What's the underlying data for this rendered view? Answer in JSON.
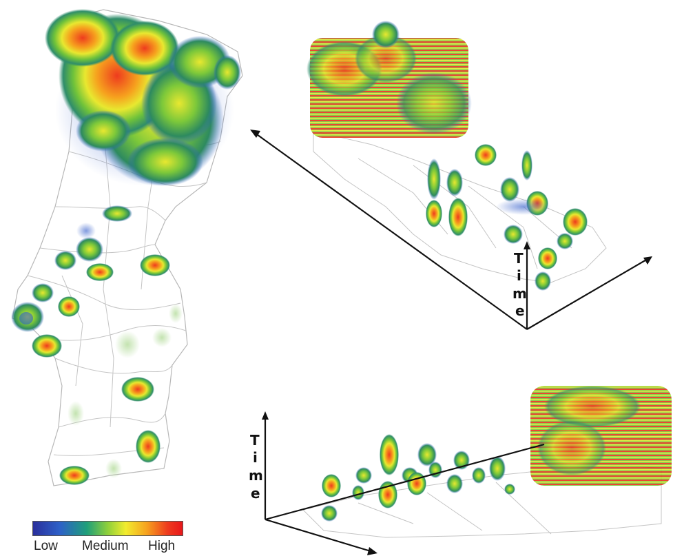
{
  "legend": {
    "low": "Low",
    "medium": "Medium",
    "high": "High",
    "colors": [
      "#2a2f9c",
      "#2d61c8",
      "#1f9f7a",
      "#8fd03a",
      "#f2ec2e",
      "#f6a21e",
      "#ee3b1e",
      "#e8171b"
    ]
  },
  "views": {
    "top_right": {
      "axis_label": [
        "T",
        "i",
        "m",
        "e"
      ]
    },
    "bottom_right": {
      "axis_label": [
        "T",
        "i",
        "m",
        "e"
      ]
    }
  }
}
